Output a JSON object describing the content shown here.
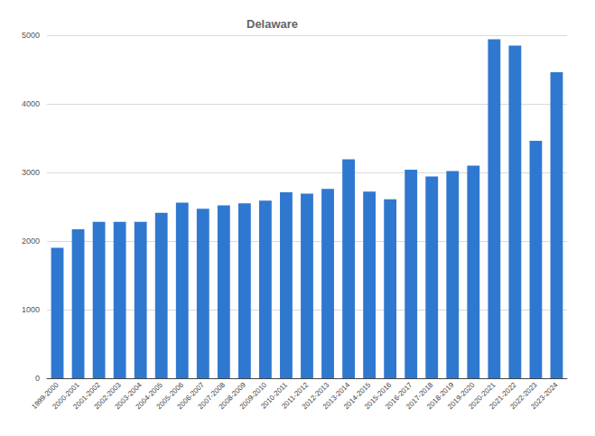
{
  "chart_data": {
    "type": "bar",
    "title": "Delaware",
    "categories": [
      "1999-2000",
      "2000-2001",
      "2001-2002",
      "2002-2003",
      "2003-2004",
      "2004-2005",
      "2005-2006",
      "2006-2007",
      "2007-2008",
      "2008-2009",
      "2009-2010",
      "2010-2011",
      "2011-2012",
      "2012-2013",
      "2013-2014",
      "2014-2015",
      "2015-2016",
      "2016-2017",
      "2017-2018",
      "2018-2019",
      "2019-2020",
      "2020-2021",
      "2021-2022",
      "2022-2023",
      "2023-2024"
    ],
    "values": [
      1900,
      2170,
      2280,
      2280,
      2280,
      2410,
      2560,
      2470,
      2520,
      2550,
      2590,
      2710,
      2690,
      2760,
      3190,
      2720,
      2610,
      3040,
      2940,
      3020,
      3100,
      4940,
      4850,
      3460,
      4460
    ],
    "color": "#2f78d0",
    "ylim": [
      0,
      5000
    ],
    "yticks": [
      0,
      1000,
      2000,
      3000,
      4000,
      5000
    ],
    "grid": true
  }
}
